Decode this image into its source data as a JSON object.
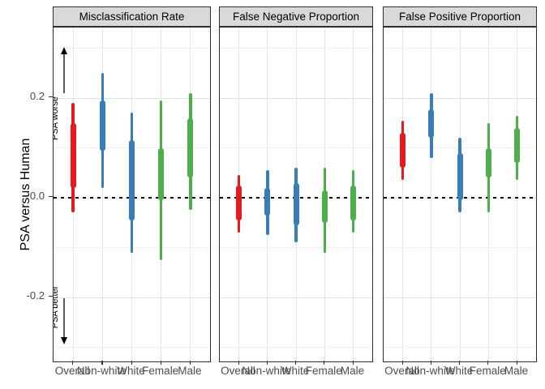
{
  "y_axis": {
    "title": "PSA versus Human",
    "tick_labels": [
      "0.2",
      "0.0",
      "-0.2"
    ]
  },
  "annotations": {
    "worse_label": "PSA worse",
    "better_label": "PSA better"
  },
  "colors": {
    "overall": "#E41A1C",
    "race": "#377EB8",
    "sex": "#4DAF4A",
    "strip_bg": "#D9D9D9",
    "panel_border": "#2E2E2E",
    "grid_major": "#E2E2E2",
    "grid_minor": "#EFEFEF",
    "zero_line": "#000000"
  },
  "chart_data": {
    "type": "interval",
    "subtype": "credible-interval-pointrange",
    "ylabel": "PSA versus Human",
    "xlabel": "",
    "ylim": [
      -0.33,
      0.34
    ],
    "y_major_ticks": [
      0.2,
      0.0,
      -0.2
    ],
    "y_minor_gridlines": [
      0.3,
      0.1,
      -0.1,
      -0.3
    ],
    "reference_line": 0.0,
    "grid": true,
    "legend": "none",
    "x_categories": [
      "Overall",
      "Non-white",
      "White",
      "Female",
      "Male"
    ],
    "category_colors": [
      "#E41A1C",
      "#377EB8",
      "#377EB8",
      "#4DAF4A",
      "#4DAF4A"
    ],
    "panels": [
      {
        "title": "Misclassification Rate",
        "series": [
          {
            "category": "Overall",
            "outer": [
              -0.03,
              0.19
            ],
            "inner": [
              0.02,
              0.15
            ]
          },
          {
            "category": "Non-white",
            "outer": [
              0.02,
              0.25
            ],
            "inner": [
              0.095,
              0.195
            ]
          },
          {
            "category": "White",
            "outer": [
              -0.11,
              0.17
            ],
            "inner": [
              -0.045,
              0.115
            ]
          },
          {
            "category": "Female",
            "outer": [
              -0.125,
              0.195
            ],
            "inner": [
              -0.005,
              0.1
            ]
          },
          {
            "category": "Male",
            "outer": [
              -0.025,
              0.21
            ],
            "inner": [
              0.04,
              0.16
            ]
          }
        ]
      },
      {
        "title": "False Negative Proportion",
        "series": [
          {
            "category": "Overall",
            "outer": [
              -0.07,
              0.045
            ],
            "inner": [
              -0.045,
              0.025
            ]
          },
          {
            "category": "Non-white",
            "outer": [
              -0.075,
              0.055
            ],
            "inner": [
              -0.035,
              0.02
            ]
          },
          {
            "category": "White",
            "outer": [
              -0.09,
              0.06
            ],
            "inner": [
              -0.055,
              0.03
            ]
          },
          {
            "category": "Female",
            "outer": [
              -0.11,
              0.06
            ],
            "inner": [
              -0.05,
              0.015
            ]
          },
          {
            "category": "Male",
            "outer": [
              -0.07,
              0.055
            ],
            "inner": [
              -0.045,
              0.025
            ]
          }
        ]
      },
      {
        "title": "False Positive Proportion",
        "series": [
          {
            "category": "Overall",
            "outer": [
              0.035,
              0.155
            ],
            "inner": [
              0.06,
              0.13
            ]
          },
          {
            "category": "Non-white",
            "outer": [
              0.08,
              0.21
            ],
            "inner": [
              0.12,
              0.178
            ]
          },
          {
            "category": "White",
            "outer": [
              -0.03,
              0.12
            ],
            "inner": [
              -0.005,
              0.09
            ]
          },
          {
            "category": "Female",
            "outer": [
              -0.03,
              0.15
            ],
            "inner": [
              0.04,
              0.1
            ]
          },
          {
            "category": "Male",
            "outer": [
              0.035,
              0.165
            ],
            "inner": [
              0.07,
              0.14
            ]
          }
        ]
      }
    ],
    "direction_annotations": [
      {
        "text": "PSA worse",
        "direction": "up",
        "panel": "Misclassification Rate"
      },
      {
        "text": "PSA better",
        "direction": "down",
        "panel": "Misclassification Rate"
      }
    ]
  }
}
